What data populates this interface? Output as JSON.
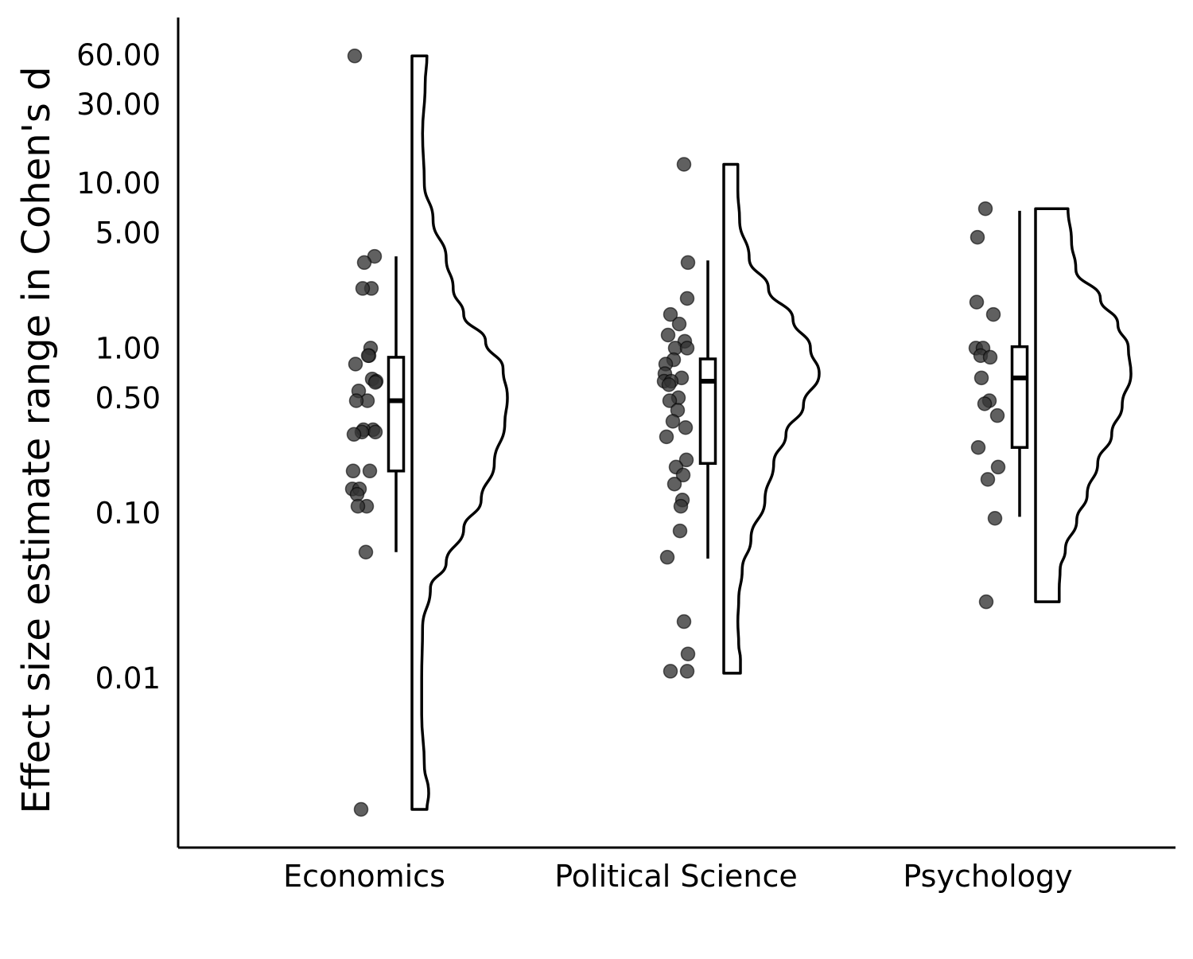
{
  "chart_data": {
    "type": "raincloud",
    "title": "",
    "xlabel": "",
    "ylabel": "Effect size estimate range in Cohen's d",
    "y_scale": "log10",
    "ylim": [
      0.0013,
      100
    ],
    "yticks": [
      {
        "value": 60,
        "label": "60.00"
      },
      {
        "value": 30,
        "label": "30.00"
      },
      {
        "value": 10,
        "label": "10.00"
      },
      {
        "value": 5,
        "label": "5.00"
      },
      {
        "value": 1,
        "label": "1.00"
      },
      {
        "value": 0.5,
        "label": "0.50"
      },
      {
        "value": 0.1,
        "label": "0.10"
      },
      {
        "value": 0.01,
        "label": "0.01"
      }
    ],
    "categories": [
      "Economics",
      "Political Science",
      "Psychology"
    ],
    "grid": false,
    "legend": "none",
    "colors": {
      "points": "#333333",
      "lines": "#000000",
      "fill": "#ffffff"
    },
    "groups": [
      {
        "name": "Economics",
        "points": [
          59,
          3.6,
          3.3,
          2.3,
          2.3,
          1.0,
          0.9,
          0.9,
          0.8,
          0.65,
          0.63,
          0.62,
          0.55,
          0.48,
          0.48,
          0.32,
          0.32,
          0.31,
          0.31,
          0.3,
          0.18,
          0.18,
          0.14,
          0.14,
          0.13,
          0.11,
          0.11,
          0.058,
          0.0016
        ],
        "box": {
          "whisker_low": 0.058,
          "q1": 0.18,
          "median": 0.48,
          "q3": 0.88,
          "whisker_high": 3.6
        },
        "density": [
          [
            0.0016,
            0.08
          ],
          [
            0.002,
            0.1
          ],
          [
            0.003,
            0.05
          ],
          [
            0.006,
            0.02
          ],
          [
            0.01,
            0.02
          ],
          [
            0.02,
            0.03
          ],
          [
            0.035,
            0.12
          ],
          [
            0.05,
            0.3
          ],
          [
            0.08,
            0.5
          ],
          [
            0.12,
            0.7
          ],
          [
            0.2,
            0.85
          ],
          [
            0.35,
            0.97
          ],
          [
            0.5,
            1.0
          ],
          [
            0.75,
            0.95
          ],
          [
            1.1,
            0.75
          ],
          [
            1.6,
            0.5
          ],
          [
            2.3,
            0.38
          ],
          [
            3.5,
            0.3
          ],
          [
            6,
            0.15
          ],
          [
            10,
            0.05
          ],
          [
            20,
            0.03
          ],
          [
            40,
            0.06
          ],
          [
            59,
            0.08
          ]
        ]
      },
      {
        "name": "Political Science",
        "points": [
          13,
          3.3,
          2.0,
          1.6,
          1.4,
          1.2,
          1.1,
          1.0,
          1.0,
          0.85,
          0.8,
          0.7,
          0.66,
          0.63,
          0.63,
          0.6,
          0.5,
          0.48,
          0.42,
          0.36,
          0.33,
          0.29,
          0.21,
          0.19,
          0.17,
          0.15,
          0.12,
          0.11,
          0.078,
          0.054,
          0.022,
          0.014,
          0.011,
          0.011
        ],
        "box": {
          "whisker_low": 0.053,
          "q1": 0.2,
          "median": 0.63,
          "q3": 0.86,
          "whisker_high": 3.4
        },
        "density": [
          [
            0.0107,
            0.1
          ],
          [
            0.013,
            0.1
          ],
          [
            0.016,
            0.08
          ],
          [
            0.022,
            0.07
          ],
          [
            0.03,
            0.08
          ],
          [
            0.045,
            0.12
          ],
          [
            0.07,
            0.22
          ],
          [
            0.12,
            0.38
          ],
          [
            0.2,
            0.48
          ],
          [
            0.3,
            0.62
          ],
          [
            0.45,
            0.82
          ],
          [
            0.7,
            1.0
          ],
          [
            1.0,
            0.9
          ],
          [
            1.5,
            0.7
          ],
          [
            2.3,
            0.42
          ],
          [
            3.5,
            0.2
          ],
          [
            6,
            0.09
          ],
          [
            9,
            0.07
          ],
          [
            13,
            0.07
          ]
        ]
      },
      {
        "name": "Psychology",
        "points": [
          7.0,
          4.7,
          1.9,
          1.6,
          1.0,
          1.0,
          0.9,
          0.88,
          0.66,
          0.48,
          0.46,
          0.39,
          0.25,
          0.19,
          0.16,
          0.093,
          0.029
        ],
        "box": {
          "whisker_low": 0.095,
          "q1": 0.25,
          "median": 0.66,
          "q3": 1.02,
          "whisker_high": 6.8
        },
        "density": [
          [
            0.029,
            0.18
          ],
          [
            0.035,
            0.18
          ],
          [
            0.045,
            0.19
          ],
          [
            0.06,
            0.25
          ],
          [
            0.09,
            0.38
          ],
          [
            0.13,
            0.5
          ],
          [
            0.2,
            0.62
          ],
          [
            0.3,
            0.78
          ],
          [
            0.45,
            0.9
          ],
          [
            0.7,
            1.0
          ],
          [
            1.0,
            0.97
          ],
          [
            1.4,
            0.85
          ],
          [
            2.0,
            0.65
          ],
          [
            3.0,
            0.37
          ],
          [
            4.5,
            0.32
          ],
          [
            7.0,
            0.28
          ]
        ]
      }
    ]
  }
}
